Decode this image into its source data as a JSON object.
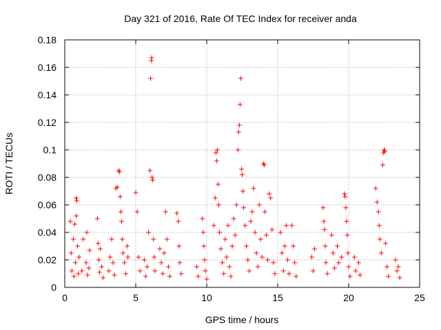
{
  "chart_data": {
    "type": "scatter",
    "title": "Day 321 of 2016, Rate Of TEC Index for receiver anda",
    "xlabel": "GPS time / hours",
    "ylabel": "ROTI / TECUs",
    "xlim": [
      0,
      25
    ],
    "ylim": [
      0,
      0.18
    ],
    "xticks": [
      0,
      5,
      10,
      15,
      20,
      25
    ],
    "yticks": [
      0,
      0.02,
      0.04,
      0.06,
      0.08,
      0.1,
      0.12,
      0.14,
      0.16,
      0.18
    ],
    "xtick_labels": [
      "0",
      "5",
      "10",
      "15",
      "20",
      "25"
    ],
    "ytick_labels": [
      "0",
      "0.02",
      "0.04",
      "0.06",
      "0.08",
      "0.1",
      "0.12",
      "0.14",
      "0.16",
      "0.18"
    ],
    "grid": true,
    "marker": "+",
    "color": "#ff0000",
    "series": [
      {
        "name": "ROTI",
        "points": [
          [
            0.4,
            0.048
          ],
          [
            0.45,
            0.025
          ],
          [
            0.5,
            0.012
          ],
          [
            0.6,
            0.035
          ],
          [
            0.65,
            0.008
          ],
          [
            0.7,
            0.046
          ],
          [
            0.75,
            0.018
          ],
          [
            0.8,
            0.065
          ],
          [
            0.82,
            0.052
          ],
          [
            0.85,
            0.063
          ],
          [
            0.9,
            0.03
          ],
          [
            0.95,
            0.01
          ],
          [
            1.0,
            0.022
          ],
          [
            1.2,
            0.012
          ],
          [
            1.3,
            0.035
          ],
          [
            1.5,
            0.018
          ],
          [
            1.55,
            0.04
          ],
          [
            1.6,
            0.009
          ],
          [
            1.7,
            0.014
          ],
          [
            1.75,
            0.027
          ],
          [
            2.3,
            0.05
          ],
          [
            2.35,
            0.032
          ],
          [
            2.4,
            0.02
          ],
          [
            2.45,
            0.011
          ],
          [
            2.5,
            0.028
          ],
          [
            2.6,
            0.015
          ],
          [
            2.7,
            0.007
          ],
          [
            3.1,
            0.012
          ],
          [
            3.2,
            0.022
          ],
          [
            3.3,
            0.035
          ],
          [
            3.4,
            0.018
          ],
          [
            3.5,
            0.009
          ],
          [
            3.6,
            0.072
          ],
          [
            3.7,
            0.073
          ],
          [
            3.8,
            0.085
          ],
          [
            3.85,
            0.084
          ],
          [
            3.9,
            0.066
          ],
          [
            3.95,
            0.055
          ],
          [
            4.0,
            0.048
          ],
          [
            4.05,
            0.035
          ],
          [
            4.1,
            0.025
          ],
          [
            4.2,
            0.018
          ],
          [
            4.3,
            0.01
          ],
          [
            4.4,
            0.03
          ],
          [
            4.45,
            0.022
          ],
          [
            5.0,
            0.069
          ],
          [
            5.1,
            0.055
          ],
          [
            5.2,
            0.022
          ],
          [
            5.3,
            0.012
          ],
          [
            5.6,
            0.02
          ],
          [
            5.7,
            0.008
          ],
          [
            5.8,
            0.015
          ],
          [
            5.9,
            0.04
          ],
          [
            6.0,
            0.085
          ],
          [
            6.05,
            0.152
          ],
          [
            6.1,
            0.165
          ],
          [
            6.12,
            0.167
          ],
          [
            6.15,
            0.08
          ],
          [
            6.2,
            0.078
          ],
          [
            6.25,
            0.035
          ],
          [
            6.3,
            0.022
          ],
          [
            6.35,
            0.012
          ],
          [
            6.7,
            0.028
          ],
          [
            6.8,
            0.018
          ],
          [
            6.9,
            0.01
          ],
          [
            7.0,
            0.025
          ],
          [
            7.1,
            0.055
          ],
          [
            7.2,
            0.035
          ],
          [
            7.3,
            0.015
          ],
          [
            7.4,
            0.008
          ],
          [
            7.9,
            0.054
          ],
          [
            8.0,
            0.048
          ],
          [
            8.05,
            0.03
          ],
          [
            8.1,
            0.018
          ],
          [
            8.2,
            0.01
          ],
          [
            9.3,
            0.015
          ],
          [
            9.4,
            0.008
          ],
          [
            9.7,
            0.05
          ],
          [
            9.75,
            0.04
          ],
          [
            9.8,
            0.03
          ],
          [
            9.85,
            0.02
          ],
          [
            9.9,
            0.012
          ],
          [
            10.0,
            0.006
          ],
          [
            10.5,
            0.045
          ],
          [
            10.6,
            0.065
          ],
          [
            10.65,
            0.098
          ],
          [
            10.7,
            0.092
          ],
          [
            10.75,
            0.1
          ],
          [
            10.8,
            0.075
          ],
          [
            10.85,
            0.06
          ],
          [
            10.9,
            0.04
          ],
          [
            11.0,
            0.028
          ],
          [
            11.1,
            0.018
          ],
          [
            11.2,
            0.01
          ],
          [
            11.3,
            0.035
          ],
          [
            11.4,
            0.022
          ],
          [
            11.5,
            0.045
          ],
          [
            11.6,
            0.015
          ],
          [
            11.7,
            0.008
          ],
          [
            11.8,
            0.03
          ],
          [
            11.9,
            0.05
          ],
          [
            12.0,
            0.038
          ],
          [
            12.1,
            0.06
          ],
          [
            12.2,
            0.1
          ],
          [
            12.25,
            0.113
          ],
          [
            12.3,
            0.118
          ],
          [
            12.35,
            0.133
          ],
          [
            12.4,
            0.152
          ],
          [
            12.45,
            0.086
          ],
          [
            12.5,
            0.082
          ],
          [
            12.55,
            0.07
          ],
          [
            12.6,
            0.058
          ],
          [
            12.7,
            0.045
          ],
          [
            12.8,
            0.03
          ],
          [
            12.9,
            0.02
          ],
          [
            13.0,
            0.012
          ],
          [
            13.1,
            0.048
          ],
          [
            13.2,
            0.055
          ],
          [
            13.3,
            0.072
          ],
          [
            13.4,
            0.04
          ],
          [
            13.5,
            0.025
          ],
          [
            13.6,
            0.015
          ],
          [
            13.7,
            0.06
          ],
          [
            13.8,
            0.035
          ],
          [
            13.9,
            0.022
          ],
          [
            14.0,
            0.09
          ],
          [
            14.05,
            0.089
          ],
          [
            14.1,
            0.055
          ],
          [
            14.2,
            0.038
          ],
          [
            14.3,
            0.02
          ],
          [
            14.4,
            0.068
          ],
          [
            14.5,
            0.065
          ],
          [
            14.6,
            0.042
          ],
          [
            14.7,
            0.018
          ],
          [
            14.8,
            0.01
          ],
          [
            15.2,
            0.04
          ],
          [
            15.3,
            0.025
          ],
          [
            15.4,
            0.012
          ],
          [
            15.5,
            0.03
          ],
          [
            15.6,
            0.045
          ],
          [
            15.7,
            0.02
          ],
          [
            15.8,
            0.01
          ],
          [
            16.0,
            0.045
          ],
          [
            16.1,
            0.03
          ],
          [
            16.2,
            0.018
          ],
          [
            16.3,
            0.008
          ],
          [
            17.4,
            0.022
          ],
          [
            17.5,
            0.012
          ],
          [
            17.6,
            0.028
          ],
          [
            18.2,
            0.058
          ],
          [
            18.25,
            0.048
          ],
          [
            18.3,
            0.042
          ],
          [
            18.35,
            0.03
          ],
          [
            18.4,
            0.018
          ],
          [
            18.5,
            0.01
          ],
          [
            18.8,
            0.038
          ],
          [
            18.9,
            0.025
          ],
          [
            19.0,
            0.014
          ],
          [
            19.2,
            0.03
          ],
          [
            19.3,
            0.018
          ],
          [
            19.5,
            0.022
          ],
          [
            19.7,
            0.068
          ],
          [
            19.75,
            0.066
          ],
          [
            19.8,
            0.058
          ],
          [
            19.85,
            0.048
          ],
          [
            19.9,
            0.038
          ],
          [
            19.95,
            0.025
          ],
          [
            20.0,
            0.015
          ],
          [
            20.1,
            0.008
          ],
          [
            20.4,
            0.022
          ],
          [
            20.5,
            0.012
          ],
          [
            20.7,
            0.018
          ],
          [
            20.8,
            0.009
          ],
          [
            21.9,
            0.072
          ],
          [
            22.0,
            0.062
          ],
          [
            22.1,
            0.055
          ],
          [
            22.15,
            0.045
          ],
          [
            22.2,
            0.035
          ],
          [
            22.3,
            0.025
          ],
          [
            22.4,
            0.089
          ],
          [
            22.45,
            0.098
          ],
          [
            22.5,
            0.1
          ],
          [
            22.55,
            0.099
          ],
          [
            22.6,
            0.032
          ],
          [
            22.7,
            0.015
          ],
          [
            22.8,
            0.008
          ],
          [
            23.3,
            0.02
          ],
          [
            23.4,
            0.012
          ],
          [
            23.5,
            0.015
          ],
          [
            23.6,
            0.007
          ]
        ]
      }
    ]
  }
}
